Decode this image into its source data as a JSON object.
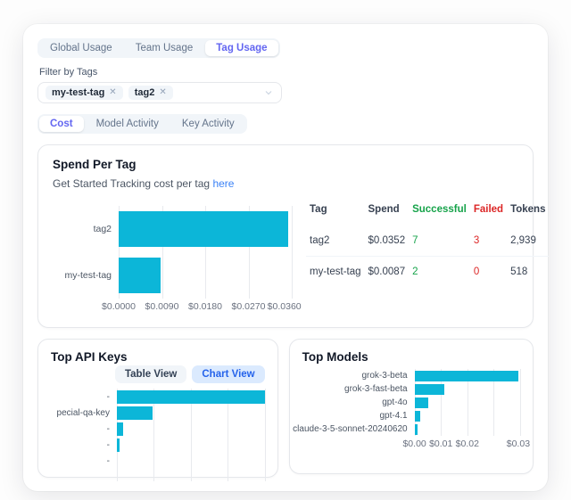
{
  "colors": {
    "bar_cyan": "#0cb6d8",
    "selected_tab_text": "#6366f1",
    "link_blue": "#3b82f6",
    "success_green": "#16a34a",
    "failed_red": "#dc2626",
    "chart_view_bg": "#dbeafe",
    "chart_view_text": "#2563eb"
  },
  "usage_tabs": {
    "global": "Global Usage",
    "team": "Team Usage",
    "tag": "Tag Usage"
  },
  "filter": {
    "label": "Filter by Tags",
    "chips": [
      {
        "label": "my-test-tag",
        "remove": "✕"
      },
      {
        "label": "tag2",
        "remove": "✕"
      }
    ]
  },
  "view_tabs": {
    "cost": "Cost",
    "model_activity": "Model Activity",
    "key_activity": "Key Activity"
  },
  "spend_card": {
    "title": "Spend Per Tag",
    "subtitle_prefix": "Get Started Tracking cost per tag",
    "subtitle_link": "here",
    "table": {
      "headers": {
        "tag": "Tag",
        "spend": "Spend",
        "successful": "Successful",
        "failed": "Failed",
        "tokens": "Tokens"
      },
      "rows": [
        {
          "tag": "tag2",
          "spend": "$0.0352",
          "successful": "7",
          "failed": "3",
          "tokens": "2,939"
        },
        {
          "tag": "my-test-tag",
          "spend": "$0.0087",
          "successful": "2",
          "failed": "0",
          "tokens": "518"
        }
      ]
    }
  },
  "top_api_keys_card": {
    "title": "Top API Keys",
    "table_view_label": "Table View",
    "chart_view_label": "Chart View"
  },
  "top_models_card": {
    "title": "Top Models"
  },
  "chart_data": [
    {
      "id": "spend_per_tag",
      "type": "bar",
      "orientation": "horizontal",
      "title": "Spend Per Tag",
      "categories": [
        "tag2",
        "my-test-tag"
      ],
      "values": [
        0.0352,
        0.0087
      ],
      "xlim": [
        0,
        0.036
      ],
      "bar_color": "#0cb6d8",
      "gridlines": [
        0,
        0.25,
        0.5,
        0.75,
        1
      ],
      "ticks": [
        {
          "label": "$0.0000",
          "pos": 0
        },
        {
          "label": "$0.0090",
          "pos": 0.25
        },
        {
          "label": "$0.0180",
          "pos": 0.5
        },
        {
          "label": "$0.0270",
          "pos": 0.75
        },
        {
          "label": "$0.0360",
          "pos": 1
        }
      ]
    },
    {
      "id": "top_api_keys",
      "type": "bar",
      "orientation": "horizontal",
      "title": "Top API Keys",
      "categories": [
        "-",
        "pecial-qa-key",
        "-",
        "-",
        "-"
      ],
      "values": [
        0.0352,
        0.0084,
        0.0015,
        0.0006,
        0
      ],
      "xlim": [
        0,
        0.0352
      ],
      "bar_color": "#0cb6d8",
      "gridlines": [
        0,
        0.25,
        0.5,
        0.75,
        1
      ],
      "ticks": []
    },
    {
      "id": "top_models",
      "type": "bar",
      "orientation": "horizontal",
      "title": "Top Models",
      "categories": [
        "grok-3-beta",
        "grok-3-fast-beta",
        "gpt-4o",
        "gpt-4.1",
        "claude-3-5-sonnet-20240620"
      ],
      "values": [
        0.0295,
        0.0085,
        0.0038,
        0.0015,
        0.0008
      ],
      "xlim": [
        0,
        0.03
      ],
      "bar_color": "#0cb6d8",
      "gridlines": [
        0,
        0.25,
        0.5,
        0.75,
        1
      ],
      "ticks": [
        {
          "label": "$0.00",
          "pos": 0
        },
        {
          "label": "$0.01",
          "pos": 0.25
        },
        {
          "label": "$0.02",
          "pos": 0.5
        },
        {
          "label": "$0.03",
          "pos": 1
        }
      ]
    }
  ]
}
